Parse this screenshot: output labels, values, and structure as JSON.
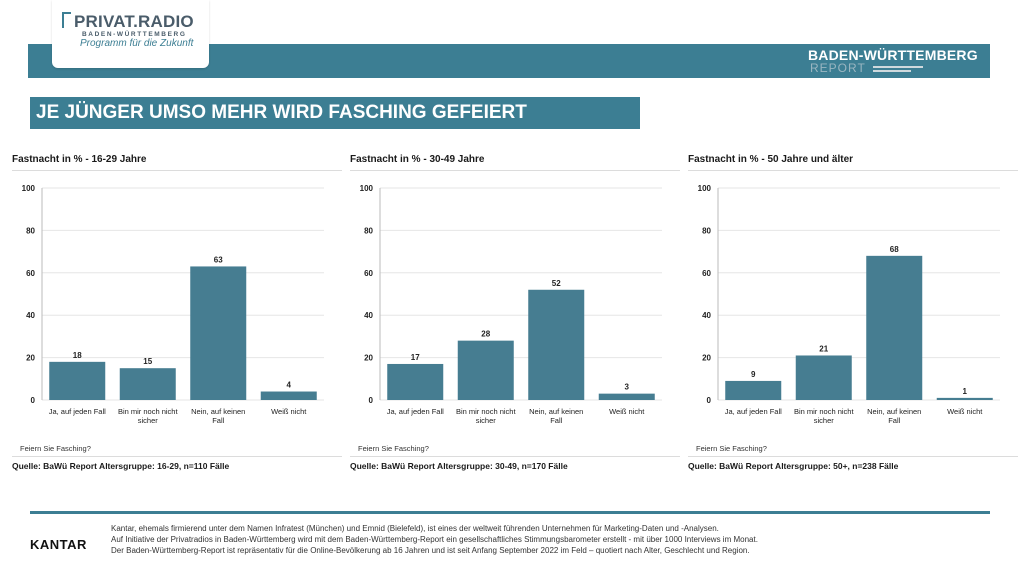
{
  "header": {
    "logo_main": "PRIVAT.RADIO",
    "logo_sub": "BADEN-WÜRTTEMBERG",
    "logo_tagline": "Programm für die Zukunft",
    "report_line1": "BADEN-WÜRTTEMBERG",
    "report_line2": "REPORT"
  },
  "title": "JE JÜNGER UMSO MEHR WIRD FASCHING GEFEIERT",
  "colors": {
    "accent": "#3c7e93",
    "bar": "#467d91"
  },
  "panels": [
    {
      "title": "Fastnacht in % - 16-29 Jahre",
      "question": "Feiern Sie Fasching?",
      "source": "Quelle: BaWü Report Altersgruppe: 16-29, n=110 Fälle"
    },
    {
      "title": "Fastnacht in % - 30-49 Jahre",
      "question": "Feiern Sie Fasching?",
      "source": "Quelle: BaWü Report Altersgruppe: 30-49, n=170 Fälle"
    },
    {
      "title": "Fastnacht in % - 50 Jahre und älter",
      "question": "Feiern Sie Fasching?",
      "source": "Quelle: BaWü Report Altersgruppe: 50+, n=238 Fälle"
    }
  ],
  "chart_data": [
    {
      "type": "bar",
      "title": "Fastnacht in % - 16-29 Jahre",
      "categories": [
        [
          "Ja, auf jeden Fall"
        ],
        [
          "Bin mir noch nicht",
          "sicher"
        ],
        [
          "Nein, auf keinen",
          "Fall"
        ],
        [
          "Weiß nicht"
        ]
      ],
      "values": [
        18,
        15,
        63,
        4
      ],
      "ylim": [
        0,
        100
      ],
      "yticks": [
        0,
        20,
        40,
        60,
        80,
        100
      ],
      "grid": true
    },
    {
      "type": "bar",
      "title": "Fastnacht in % - 30-49 Jahre",
      "categories": [
        [
          "Ja, auf jeden Fall"
        ],
        [
          "Bin mir noch nicht",
          "sicher"
        ],
        [
          "Nein, auf keinen",
          "Fall"
        ],
        [
          "Weiß nicht"
        ]
      ],
      "values": [
        17,
        28,
        52,
        3
      ],
      "ylim": [
        0,
        100
      ],
      "yticks": [
        0,
        20,
        40,
        60,
        80,
        100
      ],
      "grid": true
    },
    {
      "type": "bar",
      "title": "Fastnacht in % - 50 Jahre und älter",
      "categories": [
        [
          "Ja, auf jeden Fall"
        ],
        [
          "Bin mir noch nicht",
          "sicher"
        ],
        [
          "Nein, auf keinen",
          "Fall"
        ],
        [
          "Weiß nicht"
        ]
      ],
      "values": [
        9,
        21,
        68,
        1
      ],
      "ylim": [
        0,
        100
      ],
      "yticks": [
        0,
        20,
        40,
        60,
        80,
        100
      ],
      "grid": true
    }
  ],
  "footer": {
    "brand": "KANTAR",
    "lines": [
      "Kantar, ehemals firmierend unter dem Namen Infratest (München) und Emnid (Bielefeld), ist eines der weltweit führenden Unternehmen für Marketing-Daten und -Analysen.",
      "Auf Initiative der Privatradios in Baden-Württemberg wird mit dem Baden-Württemberg-Report ein gesellschaftliches Stimmungsbarometer erstellt - mit über 1000 Interviews im Monat.",
      "Der Baden-Württemberg-Report ist repräsentativ für die Online-Bevölkerung ab 16 Jahren und ist seit Anfang September 2022 im Feld – quotiert nach Alter, Geschlecht und Region."
    ]
  }
}
